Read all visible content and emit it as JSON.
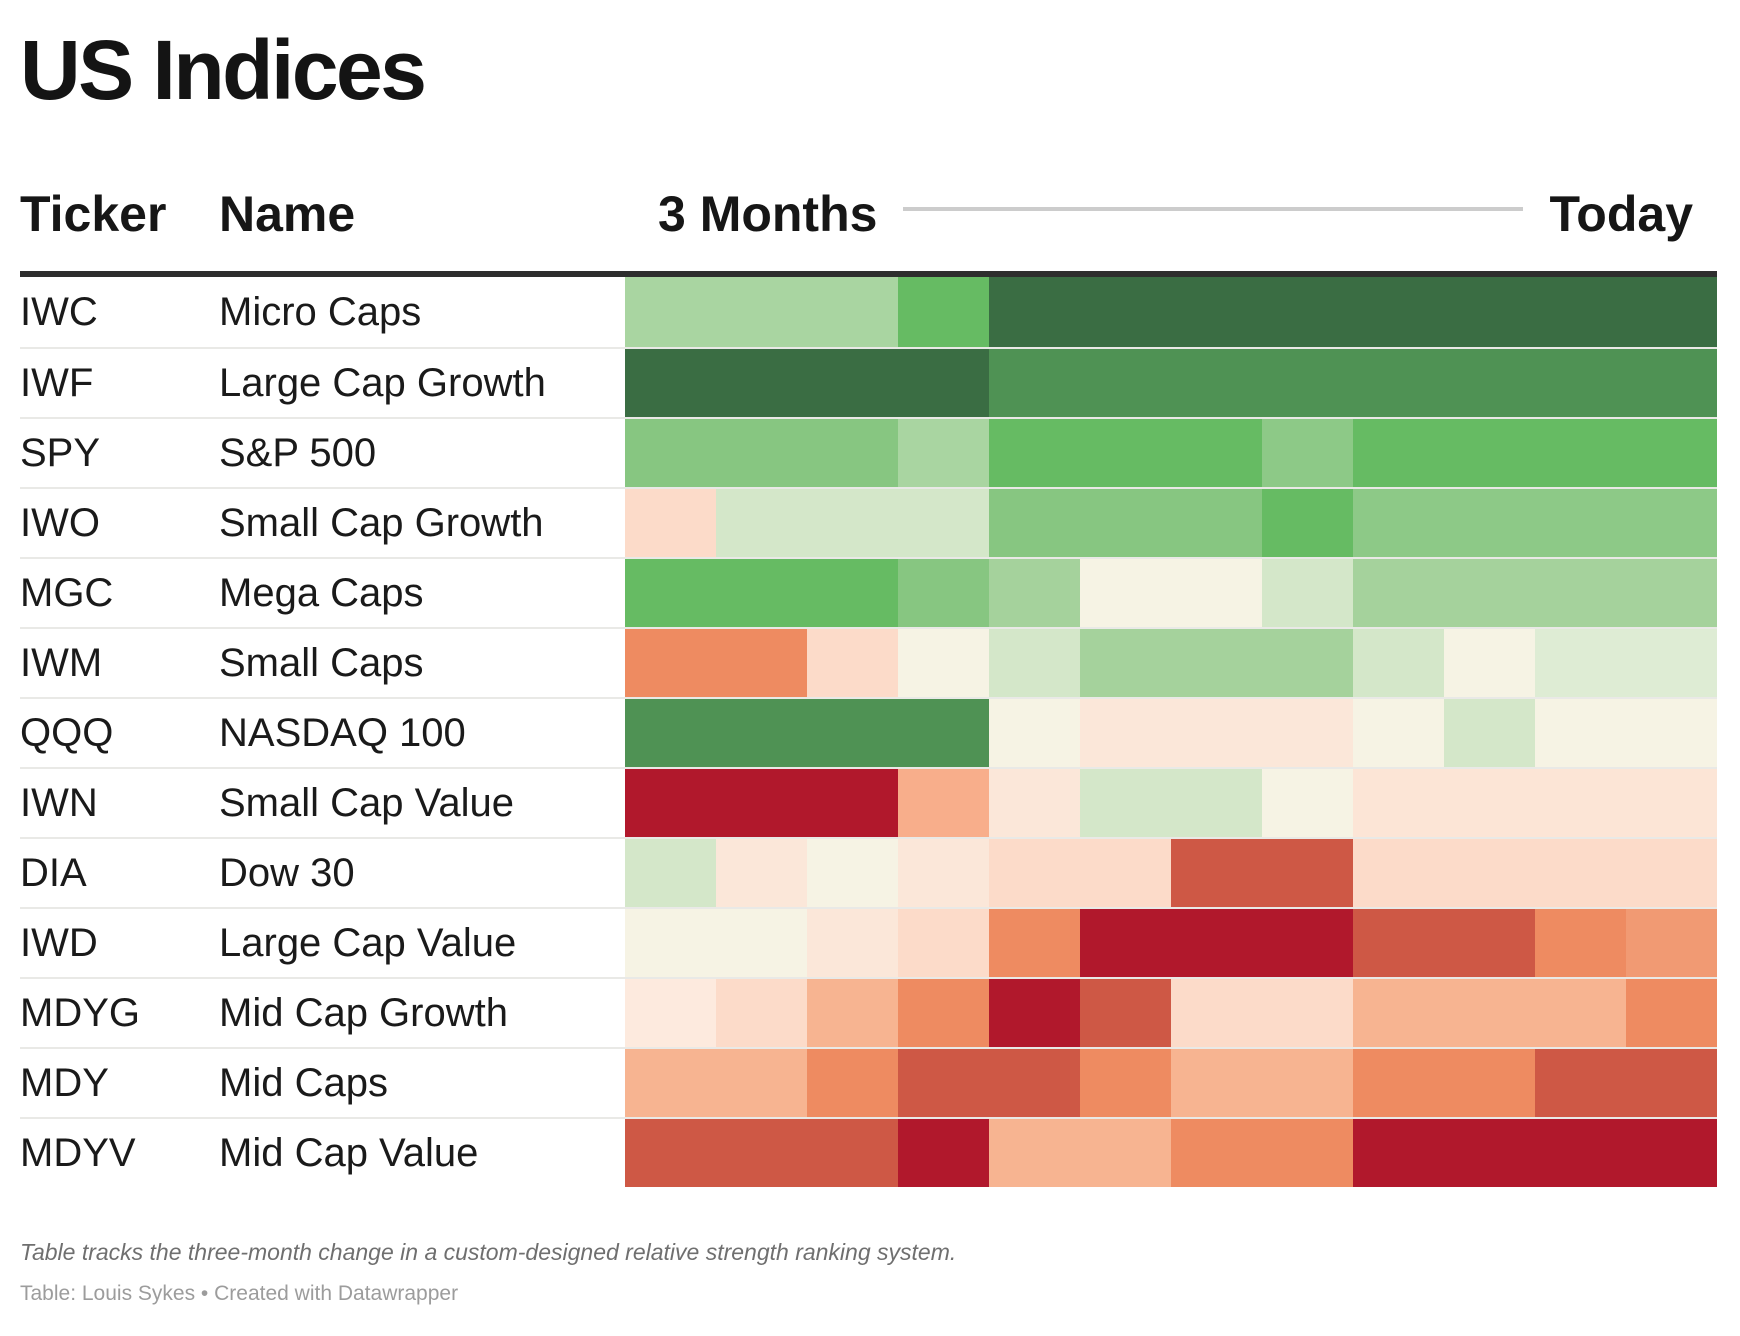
{
  "title": "US Indices",
  "table_header": {
    "ticker_label": "Ticker",
    "name_label": "Name",
    "scale_left_label": "3 Months",
    "scale_right_label": "Today"
  },
  "chart_data": {
    "type": "heatmap",
    "title": "US Indices",
    "column_axis": {
      "start_label": "3 Months",
      "end_label": "Today",
      "n_columns": 12
    },
    "value_encoding": "cell color from red (weak) to green (strong) relative strength rank",
    "rows": [
      {
        "ticker": "IWC",
        "name": "Micro Caps",
        "cell_colors": [
          "#a9d5a1",
          "#a9d5a1",
          "#a9d5a1",
          "#66bb63",
          "#3a6d43",
          "#3a6d43",
          "#3a6d43",
          "#3a6d43",
          "#3a6d43",
          "#3a6d43",
          "#3a6d43",
          "#3a6d43"
        ]
      },
      {
        "ticker": "IWF",
        "name": "Large Cap Growth",
        "cell_colors": [
          "#3a6d43",
          "#3a6d43",
          "#3a6d43",
          "#3a6d43",
          "#4f9254",
          "#4f9254",
          "#4f9254",
          "#4f9254",
          "#4f9254",
          "#4f9254",
          "#4f9254",
          "#4f9254"
        ]
      },
      {
        "ticker": "SPY",
        "name": "S&P 500",
        "cell_colors": [
          "#87c681",
          "#87c681",
          "#87c681",
          "#a9d5a1",
          "#66bb63",
          "#66bb63",
          "#66bb63",
          "#8dc987",
          "#66bb63",
          "#66bb63",
          "#66bb63",
          "#66bb63"
        ]
      },
      {
        "ticker": "IWO",
        "name": "Small Cap Growth",
        "cell_colors": [
          "#fcdbc9",
          "#d4e7c9",
          "#d4e7c9",
          "#d4e7c9",
          "#87c681",
          "#87c681",
          "#87c681",
          "#66bb63",
          "#8dc987",
          "#8dc987",
          "#8dc987",
          "#8dc987"
        ]
      },
      {
        "ticker": "MGC",
        "name": "Mega Caps",
        "cell_colors": [
          "#66bb63",
          "#66bb63",
          "#66bb63",
          "#87c681",
          "#a5d29c",
          "#f6f3e4",
          "#f6f3e4",
          "#d4e7c9",
          "#a5d29c",
          "#a5d29c",
          "#a5d29c",
          "#a5d29c"
        ]
      },
      {
        "ticker": "IWM",
        "name": "Small Caps",
        "cell_colors": [
          "#ee8b61",
          "#ee8b61",
          "#fcdbc9",
          "#f6f3e4",
          "#d4e7c9",
          "#a5d29c",
          "#a5d29c",
          "#a5d29c",
          "#d4e7c9",
          "#f6f3e4",
          "#deecd4",
          "#deecd4"
        ]
      },
      {
        "ticker": "QQQ",
        "name": "NASDAQ 100",
        "cell_colors": [
          "#4f9254",
          "#4f9254",
          "#4f9254",
          "#4f9254",
          "#f6f3e4",
          "#fbe7d9",
          "#fbe7d9",
          "#fbe7d9",
          "#f6f3e4",
          "#d4e7c9",
          "#f6f3e4",
          "#f6f3e4"
        ]
      },
      {
        "ticker": "IWN",
        "name": "Small Cap Value",
        "cell_colors": [
          "#b1182c",
          "#b1182c",
          "#b1182c",
          "#f8ae8b",
          "#fbe7d9",
          "#d4e7c9",
          "#d4e7c9",
          "#f6f3e4",
          "#fce5d6",
          "#fce5d6",
          "#fce5d6",
          "#fce5d6"
        ]
      },
      {
        "ticker": "DIA",
        "name": "Dow 30",
        "cell_colors": [
          "#d4e7c9",
          "#fbe7d9",
          "#f6f3e4",
          "#fbe7d9",
          "#fcdbc9",
          "#fcdbc9",
          "#ce5845",
          "#ce5845",
          "#fcdbc9",
          "#fcdbc9",
          "#fcdbc9",
          "#fcdbc9"
        ]
      },
      {
        "ticker": "IWD",
        "name": "Large Cap Value",
        "cell_colors": [
          "#f6f3e4",
          "#f6f3e4",
          "#fbe7d9",
          "#fcdbc9",
          "#ee8b61",
          "#b1182c",
          "#b1182c",
          "#b1182c",
          "#ce5845",
          "#ce5845",
          "#ee8b61",
          "#f19a73"
        ]
      },
      {
        "ticker": "MDYG",
        "name": "Mid Cap Growth",
        "cell_colors": [
          "#fdeade",
          "#fcdbc9",
          "#f7b491",
          "#ee8b61",
          "#b1182c",
          "#ce5845",
          "#fcdbc9",
          "#fcdbc9",
          "#f7b491",
          "#f7b491",
          "#f7b491",
          "#ee8b61"
        ]
      },
      {
        "ticker": "MDY",
        "name": "Mid Caps",
        "cell_colors": [
          "#f7b491",
          "#f7b491",
          "#ee8b61",
          "#ce5845",
          "#ce5845",
          "#ee8b61",
          "#f7b491",
          "#f7b491",
          "#ee8b61",
          "#ee8b61",
          "#ce5845",
          "#ce5845"
        ]
      },
      {
        "ticker": "MDYV",
        "name": "Mid Cap Value",
        "cell_colors": [
          "#ce5845",
          "#ce5845",
          "#ce5845",
          "#b1182c",
          "#f7b491",
          "#f7b491",
          "#ee8b61",
          "#ee8b61",
          "#b1182c",
          "#b1182c",
          "#b1182c",
          "#b1182c"
        ]
      }
    ],
    "layout": {
      "grid": false,
      "legend": "none"
    }
  },
  "footer": {
    "note": "Table tracks the three-month change in a custom-designed relative strength ranking system.",
    "credit": "Table: Louis Sykes • Created with Datawrapper"
  },
  "ui_colors": {
    "header_rule": "#2e2e2e",
    "row_divider": "#e9e9e6",
    "scale_line": "#cccccc",
    "strong_green": "#3a6d43",
    "strong_red": "#b1182c",
    "neutral_cream": "#f6f3e4"
  }
}
